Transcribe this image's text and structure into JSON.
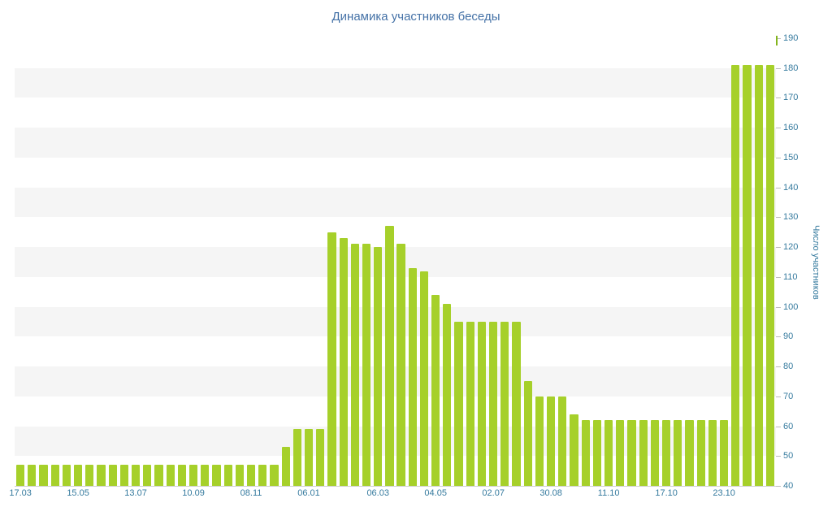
{
  "chart_data": {
    "type": "bar",
    "title": "Динамика участников беседы",
    "ylabel": "Число участников",
    "xlabel": "",
    "ylim": [
      40,
      190
    ],
    "y_tick_step": 10,
    "legend": "off",
    "grid": "alternate-horizontal-bands",
    "x_ticks": [
      {
        "index": 0,
        "label": "17.03"
      },
      {
        "index": 5,
        "label": "15.05"
      },
      {
        "index": 10,
        "label": "13.07"
      },
      {
        "index": 15,
        "label": "10.09"
      },
      {
        "index": 20,
        "label": "08.11"
      },
      {
        "index": 25,
        "label": "06.01"
      },
      {
        "index": 31,
        "label": "06.03"
      },
      {
        "index": 36,
        "label": "04.05"
      },
      {
        "index": 41,
        "label": "02.07"
      },
      {
        "index": 46,
        "label": "30.08"
      },
      {
        "index": 51,
        "label": "11.10"
      },
      {
        "index": 56,
        "label": "17.10"
      },
      {
        "index": 61,
        "label": "23.10"
      }
    ],
    "values": [
      47,
      47,
      47,
      47,
      47,
      47,
      47,
      47,
      47,
      47,
      47,
      47,
      47,
      47,
      47,
      47,
      47,
      47,
      47,
      47,
      47,
      47,
      47,
      53,
      59,
      59,
      59,
      125,
      123,
      121,
      121,
      120,
      127,
      121,
      113,
      112,
      104,
      101,
      95,
      95,
      95,
      95,
      95,
      95,
      75,
      70,
      70,
      70,
      64,
      62,
      62,
      62,
      62,
      62,
      62,
      62,
      62,
      62,
      62,
      62,
      62,
      62,
      181,
      181,
      181,
      181
    ],
    "colors": {
      "bar": "#a6d02a",
      "title": "#4572a7",
      "axis_text": "#357a9e",
      "band": "#f5f5f5",
      "axis_line": "#cfcfcf",
      "tick": "#bcbcbc",
      "top_mark": "#84b51e"
    }
  }
}
